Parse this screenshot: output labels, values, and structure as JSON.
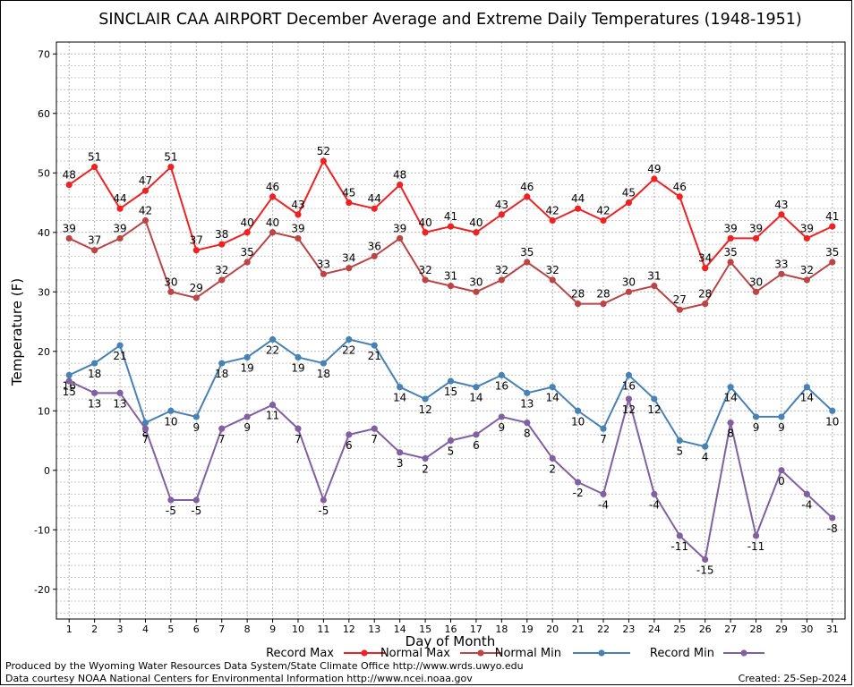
{
  "footer": {
    "credit_line_1": "Produced by the Wyoming Water Resources Data System/State Climate Office http://www.wrds.uwyo.edu",
    "credit_line_2": "Data courtesy NOAA National Centers for Environmental Information http://www.ncei.noaa.gov",
    "created": "Created:  25-Sep-2024"
  },
  "chart_data": {
    "type": "line",
    "title": "SINCLAIR CAA AIRPORT December Average and Extreme Daily Temperatures (1948-1951)",
    "xlabel": "Day of Month",
    "ylabel": "Temperature (F)",
    "xlim": [
      0.5,
      31.5
    ],
    "ylim": [
      -25,
      72
    ],
    "yticks": [
      -20,
      -10,
      0,
      10,
      20,
      30,
      40,
      50,
      60,
      70
    ],
    "grid": true,
    "legend_position": "bottom",
    "x": [
      1,
      2,
      3,
      4,
      5,
      6,
      7,
      8,
      9,
      10,
      11,
      12,
      13,
      14,
      15,
      16,
      17,
      18,
      19,
      20,
      21,
      22,
      23,
      24,
      25,
      26,
      27,
      28,
      29,
      30,
      31
    ],
    "series": [
      {
        "name": "Record Max",
        "color": "#ee2222",
        "label_pos": "above",
        "values": [
          48,
          51,
          44,
          47,
          51,
          37,
          38,
          40,
          46,
          43,
          52,
          45,
          44,
          48,
          40,
          41,
          40,
          43,
          46,
          42,
          44,
          42,
          45,
          49,
          46,
          34,
          39,
          39,
          43,
          39,
          41
        ]
      },
      {
        "name": "Normal Max",
        "color": "#bb4444",
        "label_pos": "above",
        "values": [
          39,
          37,
          39,
          42,
          30,
          29,
          32,
          35,
          40,
          39,
          33,
          34,
          36,
          39,
          32,
          31,
          30,
          32,
          35,
          32,
          28,
          28,
          30,
          31,
          27,
          28,
          35,
          30,
          33,
          32,
          35
        ]
      },
      {
        "name": "Normal Min",
        "color": "#4682b4",
        "label_pos": "below",
        "values": [
          16,
          18,
          21,
          8,
          10,
          9,
          18,
          19,
          22,
          19,
          18,
          22,
          21,
          14,
          12,
          15,
          14,
          16,
          13,
          14,
          10,
          7,
          16,
          12,
          5,
          4,
          14,
          9,
          9,
          14,
          10
        ]
      },
      {
        "name": "Record Min",
        "color": "#8060a0",
        "label_pos": "below",
        "values": [
          15,
          13,
          13,
          7,
          -5,
          -5,
          7,
          9,
          11,
          7,
          -5,
          6,
          7,
          3,
          2,
          5,
          6,
          9,
          8,
          2,
          -2,
          -4,
          12,
          -4,
          -11,
          -15,
          8,
          -11,
          0,
          -4,
          -8
        ]
      }
    ]
  }
}
